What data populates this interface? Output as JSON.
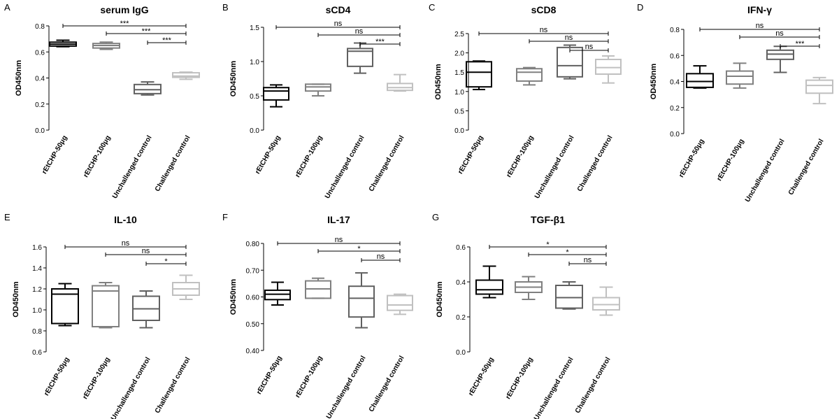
{
  "figure": {
    "box_colors": [
      "#000000",
      "#808080",
      "#606060",
      "#c0c0c0"
    ],
    "categories": [
      "rEtCHP-50μg",
      "rEtCHP-100μg",
      "Unchallenged control",
      "Challenged control"
    ],
    "ylabel": "OD450nm"
  },
  "chart_data": [
    {
      "panel": "A",
      "title": "serum IgG",
      "type": "box",
      "ylabel": "OD450nm",
      "categories": [
        "rEtCHP-50μg",
        "rEtCHP-100μg",
        "Unchallenged control",
        "Challenged control"
      ],
      "yticks": [
        0.0,
        0.2,
        0.4,
        0.6,
        0.8
      ],
      "ylim": [
        0,
        0.8
      ],
      "boxes": [
        {
          "min": 0.64,
          "q1": 0.645,
          "median": 0.66,
          "q3": 0.675,
          "max": 0.69
        },
        {
          "min": 0.62,
          "q1": 0.63,
          "median": 0.65,
          "q3": 0.665,
          "max": 0.675
        },
        {
          "min": 0.27,
          "q1": 0.28,
          "median": 0.31,
          "q3": 0.35,
          "max": 0.37
        },
        {
          "min": 0.39,
          "q1": 0.405,
          "median": 0.415,
          "q3": 0.44,
          "max": 0.445
        }
      ],
      "comparisons": [
        {
          "from": 0,
          "to": 3,
          "label": "***"
        },
        {
          "from": 1,
          "to": 3,
          "label": "***"
        },
        {
          "from": 2,
          "to": 3,
          "label": "***"
        }
      ]
    },
    {
      "panel": "B",
      "title": "sCD4",
      "type": "box",
      "ylabel": "OD450nm",
      "categories": [
        "rEtCHP-50μg",
        "rEtCHP-100μg",
        "Unchallenged control",
        "Challenged control"
      ],
      "yticks": [
        0.0,
        0.5,
        1.0,
        1.5
      ],
      "ylim": [
        0,
        1.5
      ],
      "boxes": [
        {
          "min": 0.34,
          "q1": 0.44,
          "median": 0.57,
          "q3": 0.62,
          "max": 0.66
        },
        {
          "min": 0.5,
          "q1": 0.57,
          "median": 0.63,
          "q3": 0.67,
          "max": 0.67
        },
        {
          "min": 0.83,
          "q1": 0.93,
          "median": 1.15,
          "q3": 1.19,
          "max": 1.27
        },
        {
          "min": 0.57,
          "q1": 0.58,
          "median": 0.62,
          "q3": 0.68,
          "max": 0.81
        }
      ],
      "comparisons": [
        {
          "from": 0,
          "to": 3,
          "label": "ns"
        },
        {
          "from": 1,
          "to": 3,
          "label": "ns"
        },
        {
          "from": 2,
          "to": 3,
          "label": "***"
        }
      ]
    },
    {
      "panel": "C",
      "title": "sCD8",
      "type": "box",
      "ylabel": "OD450nm",
      "categories": [
        "rEtCHP-50μg",
        "rEtCHP-100μg",
        "Unchallenged control",
        "Challenged control"
      ],
      "yticks": [
        0.0,
        0.5,
        1.0,
        1.5,
        2.0,
        2.5
      ],
      "ylim": [
        0,
        2.5
      ],
      "boxes": [
        {
          "min": 1.05,
          "q1": 1.12,
          "median": 1.5,
          "q3": 1.77,
          "max": 1.79
        },
        {
          "min": 1.17,
          "q1": 1.27,
          "median": 1.5,
          "q3": 1.59,
          "max": 1.62
        },
        {
          "min": 1.33,
          "q1": 1.38,
          "median": 1.67,
          "q3": 2.14,
          "max": 2.2
        },
        {
          "min": 1.22,
          "q1": 1.45,
          "median": 1.62,
          "q3": 1.83,
          "max": 1.92
        }
      ],
      "comparisons": [
        {
          "from": 0,
          "to": 3,
          "label": "ns"
        },
        {
          "from": 1,
          "to": 3,
          "label": "ns"
        },
        {
          "from": 2,
          "to": 3,
          "label": "ns"
        }
      ]
    },
    {
      "panel": "D",
      "title": "IFN-γ",
      "type": "box",
      "ylabel": "OD450nm",
      "categories": [
        "rEtCHP-50μg",
        "rEtCHP-100μg",
        "Unchallenged control",
        "Challenged control"
      ],
      "yticks": [
        0.0,
        0.2,
        0.4,
        0.6,
        0.8
      ],
      "ylim": [
        0,
        0.8
      ],
      "boxes": [
        {
          "min": 0.35,
          "q1": 0.355,
          "median": 0.4,
          "q3": 0.46,
          "max": 0.52
        },
        {
          "min": 0.35,
          "q1": 0.38,
          "median": 0.44,
          "q3": 0.48,
          "max": 0.54
        },
        {
          "min": 0.47,
          "q1": 0.57,
          "median": 0.61,
          "q3": 0.64,
          "max": 0.67
        },
        {
          "min": 0.23,
          "q1": 0.31,
          "median": 0.37,
          "q3": 0.41,
          "max": 0.43
        }
      ],
      "comparisons": [
        {
          "from": 0,
          "to": 3,
          "label": "ns"
        },
        {
          "from": 1,
          "to": 3,
          "label": "ns"
        },
        {
          "from": 2,
          "to": 3,
          "label": "***"
        }
      ]
    },
    {
      "panel": "E",
      "title": "IL-10",
      "type": "box",
      "ylabel": "OD450nm",
      "categories": [
        "rEtCHP-50μg",
        "rEtCHP-100μg",
        "Unchallenged control",
        "Challenged control"
      ],
      "yticks": [
        0.6,
        0.8,
        1.0,
        1.2,
        1.4,
        1.6
      ],
      "ylim": [
        0.6,
        1.6
      ],
      "boxes": [
        {
          "min": 0.85,
          "q1": 0.87,
          "median": 1.15,
          "q3": 1.2,
          "max": 1.25
        },
        {
          "min": 0.83,
          "q1": 0.84,
          "median": 1.18,
          "q3": 1.23,
          "max": 1.26
        },
        {
          "min": 0.83,
          "q1": 0.9,
          "median": 1.01,
          "q3": 1.13,
          "max": 1.18
        },
        {
          "min": 1.1,
          "q1": 1.14,
          "median": 1.2,
          "q3": 1.26,
          "max": 1.33
        }
      ],
      "comparisons": [
        {
          "from": 0,
          "to": 3,
          "label": "ns"
        },
        {
          "from": 1,
          "to": 3,
          "label": "ns"
        },
        {
          "from": 2,
          "to": 3,
          "label": "*"
        }
      ]
    },
    {
      "panel": "F",
      "title": "IL-17",
      "type": "box",
      "ylabel": "OD450nm",
      "categories": [
        "rEtCHP-50μg",
        "rEtCHP-100μg",
        "Unchallenged control",
        "Challenged control"
      ],
      "yticks": [
        0.4,
        0.5,
        0.6,
        0.7,
        0.8
      ],
      "ylim": [
        0.4,
        0.8
      ],
      "boxes": [
        {
          "min": 0.57,
          "q1": 0.59,
          "median": 0.61,
          "q3": 0.625,
          "max": 0.655
        },
        {
          "min": 0.595,
          "q1": 0.595,
          "median": 0.63,
          "q3": 0.66,
          "max": 0.67
        },
        {
          "min": 0.485,
          "q1": 0.525,
          "median": 0.595,
          "q3": 0.64,
          "max": 0.69
        },
        {
          "min": 0.535,
          "q1": 0.55,
          "median": 0.57,
          "q3": 0.605,
          "max": 0.61
        }
      ],
      "comparisons": [
        {
          "from": 0,
          "to": 3,
          "label": "ns"
        },
        {
          "from": 1,
          "to": 3,
          "label": "*"
        },
        {
          "from": 2,
          "to": 3,
          "label": "ns"
        }
      ]
    },
    {
      "panel": "G",
      "title": "TGF-β1",
      "type": "box",
      "ylabel": "OD450nm",
      "categories": [
        "rEtCHP-50μg",
        "rEtCHP-100μg",
        "Unchallenged control",
        "Challenged control"
      ],
      "yticks": [
        0.0,
        0.2,
        0.4,
        0.6
      ],
      "ylim": [
        0,
        0.6
      ],
      "boxes": [
        {
          "min": 0.31,
          "q1": 0.33,
          "median": 0.355,
          "q3": 0.41,
          "max": 0.49
        },
        {
          "min": 0.3,
          "q1": 0.34,
          "median": 0.37,
          "q3": 0.4,
          "max": 0.43
        },
        {
          "min": 0.245,
          "q1": 0.25,
          "median": 0.31,
          "q3": 0.38,
          "max": 0.4
        },
        {
          "min": 0.21,
          "q1": 0.24,
          "median": 0.27,
          "q3": 0.31,
          "max": 0.37
        }
      ],
      "comparisons": [
        {
          "from": 0,
          "to": 3,
          "label": "*"
        },
        {
          "from": 1,
          "to": 3,
          "label": "*"
        },
        {
          "from": 2,
          "to": 3,
          "label": "ns"
        }
      ]
    }
  ]
}
